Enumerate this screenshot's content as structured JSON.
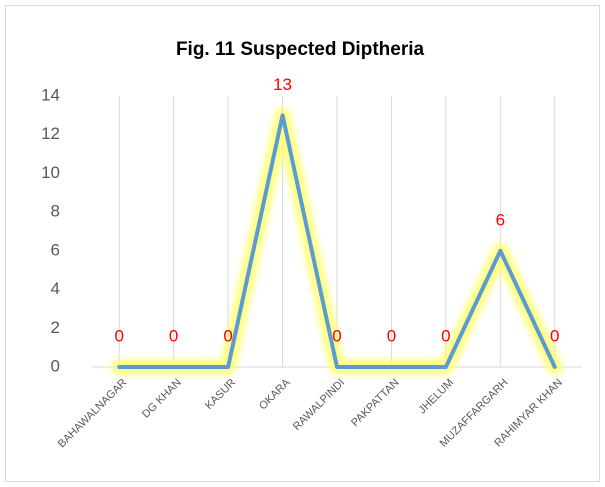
{
  "chart_data": {
    "type": "line",
    "title": "Fig. 11 Suspected Diptheria",
    "categories": [
      "BAHAWALNAGAR",
      "DG KHAN",
      "KASUR",
      "OKARA",
      "RAWALPINDI",
      "PAKPATTAN",
      "JHELUM",
      "MUZAFFARGARH",
      "RAHIMYAR KHAN"
    ],
    "values": [
      0,
      0,
      0,
      13,
      0,
      0,
      0,
      6,
      0
    ],
    "color": "#5b9bd5",
    "glow_color": "#ffff66",
    "label_color": "#ff0000",
    "ylim": [
      0,
      14
    ],
    "yticks": [
      0,
      2,
      4,
      6,
      8,
      10,
      12,
      14
    ],
    "grid": false
  }
}
